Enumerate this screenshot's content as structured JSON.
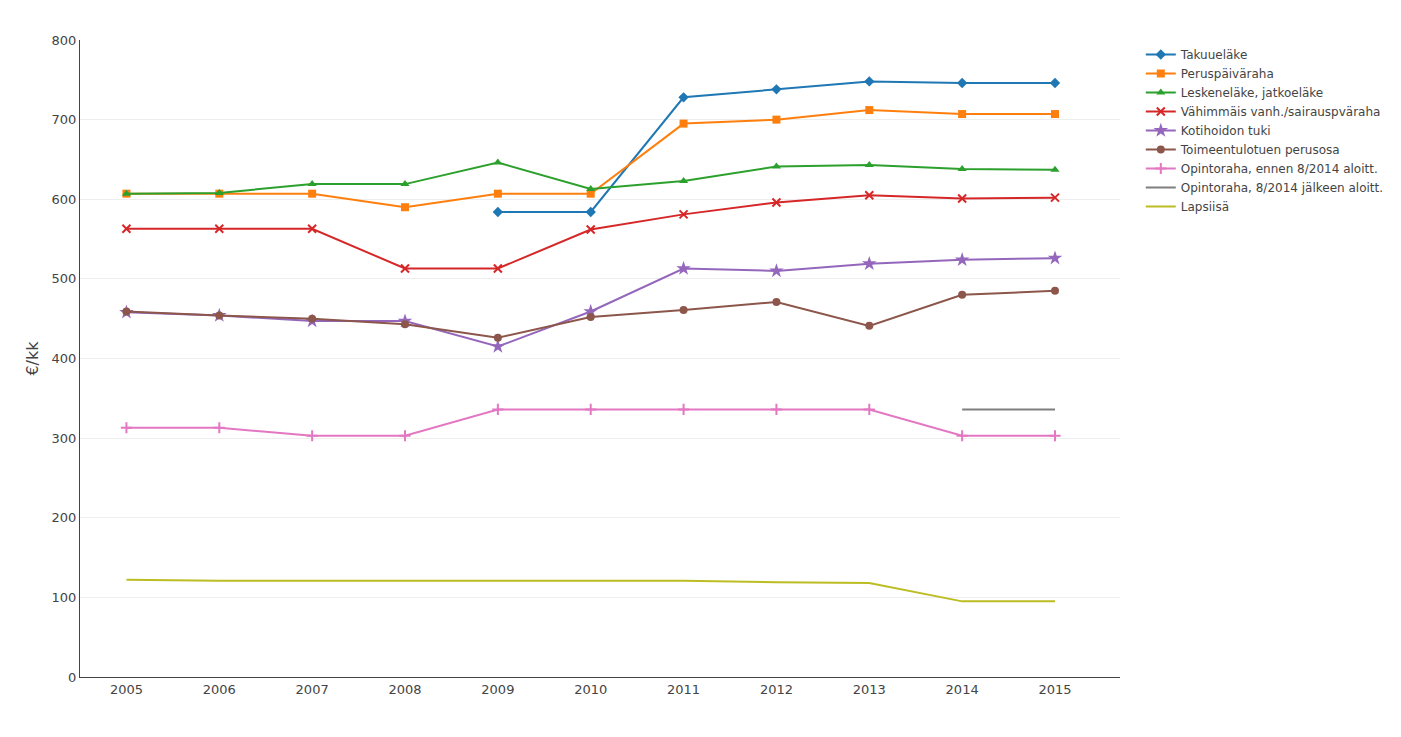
{
  "chart_data": {
    "type": "line",
    "ylabel": "€/kk",
    "x": [
      2005,
      2006,
      2007,
      2008,
      2009,
      2010,
      2011,
      2012,
      2013,
      2014,
      2015
    ],
    "series": [
      {
        "name": "Takuueläke",
        "marker": "diamond",
        "values": [
          null,
          null,
          null,
          null,
          584,
          584,
          728,
          738,
          748,
          746,
          746
        ]
      },
      {
        "name": "Peruspäiväraha",
        "marker": "square",
        "values": [
          607,
          607,
          607,
          590,
          607,
          607,
          695,
          700,
          712,
          707,
          707
        ]
      },
      {
        "name": "Leskeneläke, jatkoeläke",
        "marker": "triangle-up",
        "values": [
          607,
          608,
          619,
          619,
          646,
          613,
          623,
          641,
          643,
          638,
          637
        ]
      },
      {
        "name": "Vähimmäis vanh./sairauspväraha",
        "marker": "x",
        "values": [
          563,
          563,
          563,
          513,
          513,
          562,
          581,
          596,
          605,
          601,
          602
        ]
      },
      {
        "name": "Kotihoidon tuki",
        "marker": "star",
        "values": [
          458,
          454,
          447,
          447,
          415,
          459,
          513,
          510,
          519,
          524,
          526
        ]
      },
      {
        "name": "Toimeentulotuen perusosa",
        "marker": "circle",
        "values": [
          459,
          454,
          450,
          443,
          426,
          452,
          461,
          471,
          441,
          480,
          485
        ]
      },
      {
        "name": "Opintoraha, ennen 8/2014 aloitt.",
        "marker": "plus",
        "values": [
          313,
          313,
          303,
          303,
          336,
          336,
          336,
          336,
          336,
          303,
          303
        ]
      },
      {
        "name": "Opintoraha, 8/2014 jälkeen aloitt.",
        "marker": "none",
        "values": [
          null,
          null,
          null,
          null,
          null,
          null,
          null,
          null,
          null,
          336,
          336
        ]
      },
      {
        "name": "Lapsiisä",
        "marker": "none",
        "values": [
          122,
          121,
          121,
          121,
          121,
          121,
          121,
          119,
          118,
          95,
          95
        ]
      }
    ],
    "xlim": [
      2004.5,
      2015.7
    ],
    "xticks": [
      2005,
      2006,
      2007,
      2008,
      2009,
      2010,
      2011,
      2012,
      2013,
      2014,
      2015
    ],
    "ylim": [
      0,
      800
    ],
    "yticks": [
      0,
      100,
      200,
      300,
      400,
      500,
      600,
      700,
      800
    ],
    "grid": "y",
    "legend": "right"
  }
}
